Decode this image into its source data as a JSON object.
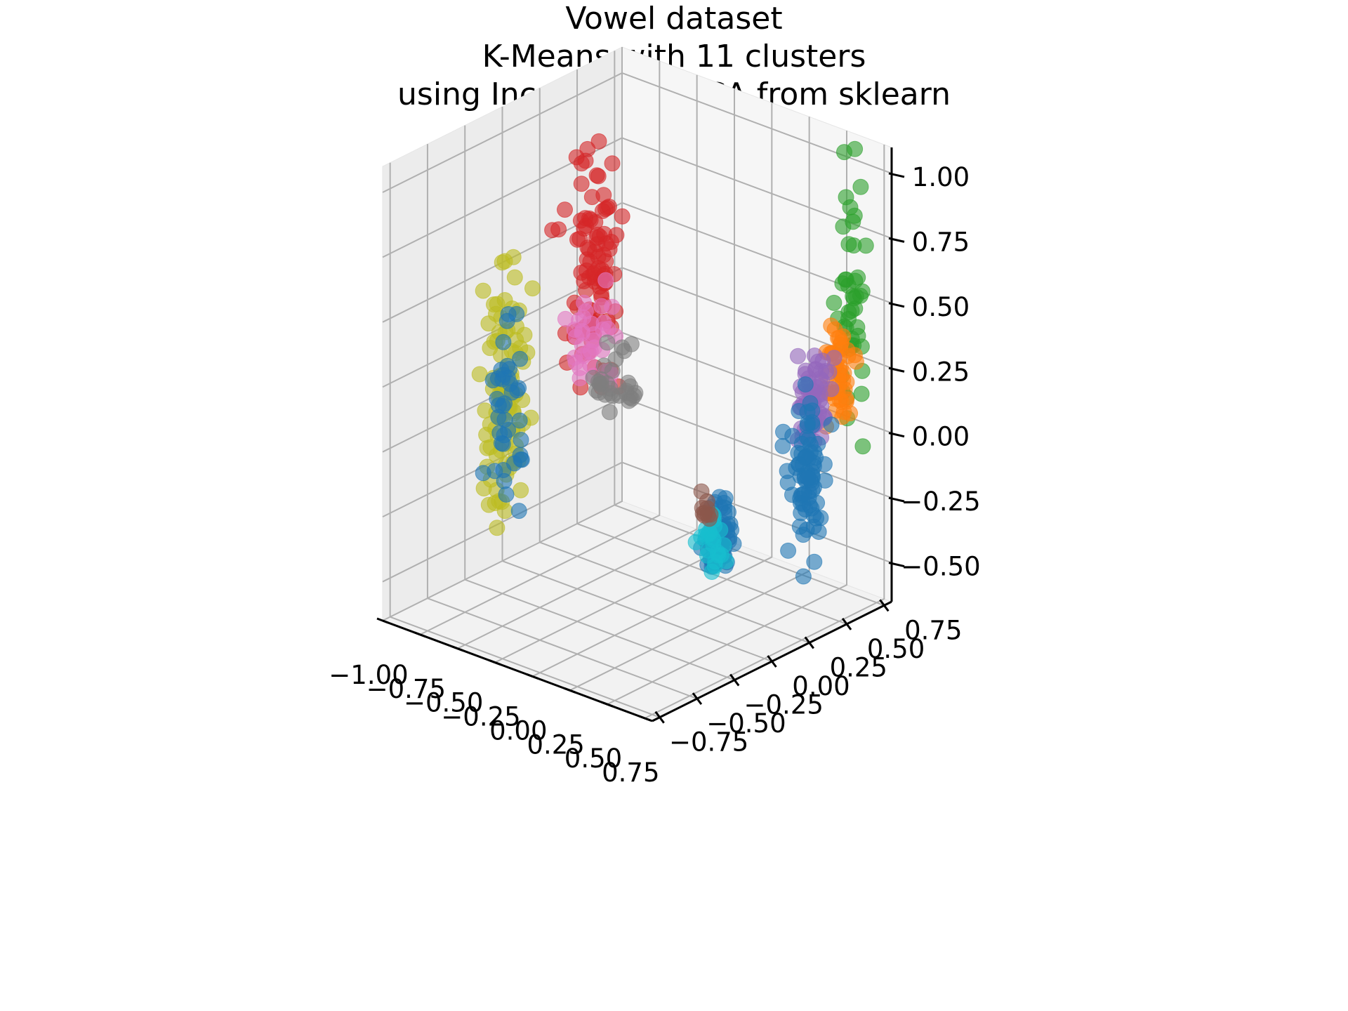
{
  "chart_data": {
    "type": "scatter",
    "projection": "3d",
    "title": [
      "Vowel dataset",
      "K-Means with 11 clusters",
      "using Incremental PCA from sklearn"
    ],
    "xlabel": "",
    "ylabel": "",
    "zlabel": "",
    "x_ticks": [
      "−1.00",
      "−0.75",
      "−0.50",
      "−0.25",
      "0.00",
      "0.25",
      "0.50",
      "0.75"
    ],
    "y_ticks": [
      "−0.75",
      "−0.50",
      "−0.25",
      "0.00",
      "0.25",
      "0.50",
      "0.75"
    ],
    "z_ticks": [
      "−0.50",
      "−0.25",
      "0.00",
      "0.25",
      "0.50",
      "0.75",
      "1.00"
    ],
    "xlim": [
      -1.0,
      0.8
    ],
    "ylim": [
      -0.8,
      0.8
    ],
    "zlim": [
      -0.65,
      1.1
    ],
    "grid": true,
    "legend": "none",
    "colors": [
      "#1f77b4",
      "#ff7f0e",
      "#2ca02c",
      "#d62728",
      "#9467bd",
      "#8c564b",
      "#e377c2",
      "#7f7f7f",
      "#bcbd22",
      "#17becf"
    ],
    "clusters": [
      {
        "color": "#d62728",
        "center": [
          -0.85,
          0.45,
          0.4
        ],
        "spread": [
          0.06,
          0.12,
          0.28
        ],
        "n": 95
      },
      {
        "color": "#e377c2",
        "center": [
          -0.85,
          0.45,
          0.1
        ],
        "spread": [
          0.05,
          0.12,
          0.14
        ],
        "n": 35
      },
      {
        "color": "#7f7f7f",
        "center": [
          -0.85,
          0.6,
          -0.1
        ],
        "spread": [
          0.04,
          0.1,
          0.1
        ],
        "n": 30
      },
      {
        "color": "#bcbd22",
        "center": [
          -0.95,
          -0.05,
          0.0
        ],
        "spread": [
          0.05,
          0.1,
          0.35
        ],
        "n": 95
      },
      {
        "color": "#1f77b4",
        "center": [
          -0.97,
          0.0,
          -0.05
        ],
        "spread": [
          0.04,
          0.08,
          0.25
        ],
        "n": 40
      },
      {
        "color": "#2ca02c",
        "center": [
          0.55,
          0.78,
          0.5
        ],
        "spread": [
          0.03,
          0.06,
          0.35
        ],
        "n": 45
      },
      {
        "color": "#ff7f0e",
        "center": [
          0.6,
          0.65,
          0.25
        ],
        "spread": [
          0.04,
          0.08,
          0.15
        ],
        "n": 45
      },
      {
        "color": "#9467bd",
        "center": [
          0.52,
          0.55,
          0.15
        ],
        "spread": [
          0.05,
          0.08,
          0.12
        ],
        "n": 60
      },
      {
        "color": "#1f77b4",
        "center": [
          0.48,
          0.55,
          -0.15
        ],
        "spread": [
          0.05,
          0.08,
          0.2
        ],
        "n": 75
      },
      {
        "color": "#1f77b4",
        "center": [
          0.7,
          -0.25,
          -0.1
        ],
        "spread": [
          0.04,
          0.05,
          0.1
        ],
        "n": 60
      },
      {
        "color": "#17becf",
        "center": [
          0.7,
          -0.28,
          -0.15
        ],
        "spread": [
          0.04,
          0.05,
          0.1
        ],
        "n": 25
      },
      {
        "color": "#8c564b",
        "center": [
          0.6,
          -0.25,
          -0.05
        ],
        "spread": [
          0.03,
          0.04,
          0.06
        ],
        "n": 10
      }
    ]
  }
}
